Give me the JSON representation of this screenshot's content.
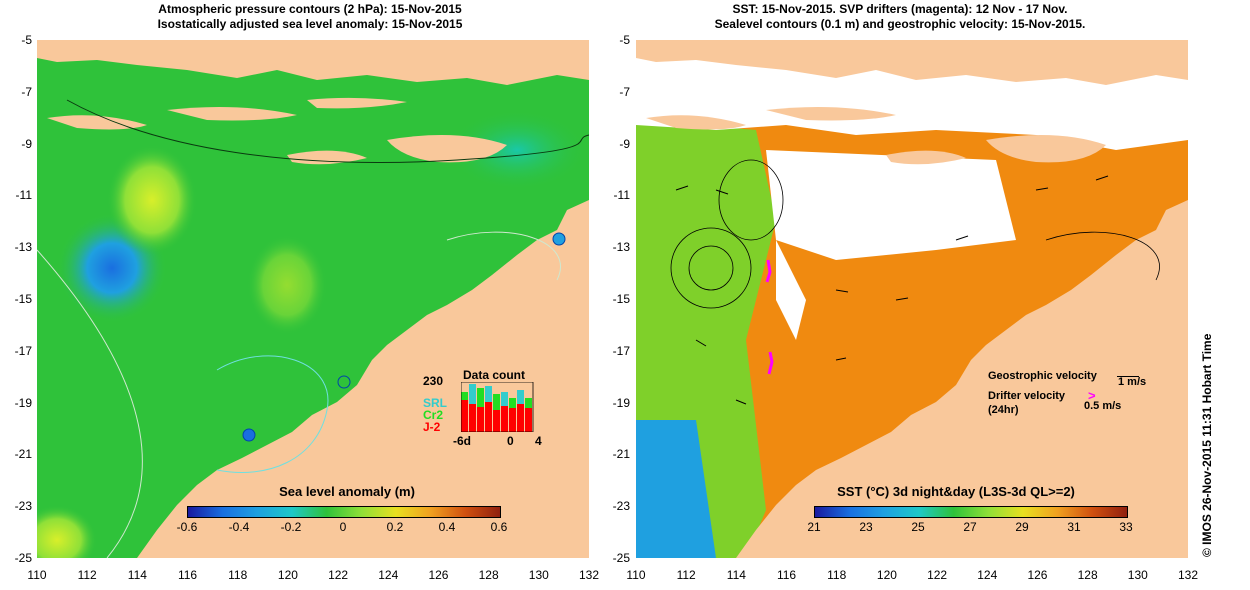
{
  "left_panel": {
    "title_line1": "Atmospheric pressure contours (2 hPa): 15-Nov-2015",
    "title_line2": "Isostatically adjusted sea level anomaly: 15-Nov-2015",
    "colorbar_title": "Sea level anomaly (m)",
    "colorbar_ticks": [
      "-0.6",
      "-0.4",
      "-0.2",
      "0",
      "0.2",
      "0.4",
      "0.6"
    ],
    "data_count": {
      "title": "Data count",
      "ymax_label": "230",
      "satellites": [
        {
          "label": "SRL",
          "color": "#33cccc"
        },
        {
          "label": "Cr2",
          "color": "#22dd22"
        },
        {
          "label": "J-2",
          "color": "#ff0000"
        }
      ],
      "x_labels": [
        "-6d",
        "0",
        "4"
      ]
    }
  },
  "right_panel": {
    "title_line1": "SST: 15-Nov-2015. SVP drifters (magenta): 12 Nov - 17 Nov.",
    "title_line2": "Sealevel contours (0.1 m) and geostrophic velocity: 15-Nov-2015.",
    "colorbar_title": "SST (°C) 3d night&day (L3S-3d QL>=2)",
    "colorbar_ticks": [
      "21",
      "23",
      "25",
      "27",
      "29",
      "31",
      "33"
    ],
    "geostrophic_label": "Geostrophic velocity",
    "geostrophic_scale": "1 m/s",
    "drifter_label": "Drifter velocity",
    "drifter_sub": "(24hr)",
    "drifter_scale": "0.5 m/s"
  },
  "axes": {
    "lon_ticks": [
      "110",
      "112",
      "114",
      "116",
      "118",
      "120",
      "122",
      "124",
      "126",
      "128",
      "130",
      "132"
    ],
    "lat_ticks": [
      "-5",
      "-7",
      "-9",
      "-11",
      "-13",
      "-15",
      "-17",
      "-19",
      "-21",
      "-23",
      "-25"
    ]
  },
  "side_caption": "© IMOS 26-Nov-2015 11:31 Hobart Time",
  "colors": {
    "land": "#f9c89b",
    "sea_anomaly_base": "#2fc23a",
    "sst_warm": "#f08a10",
    "cloud": "#ffffff",
    "drifter": "#ff00ff"
  }
}
